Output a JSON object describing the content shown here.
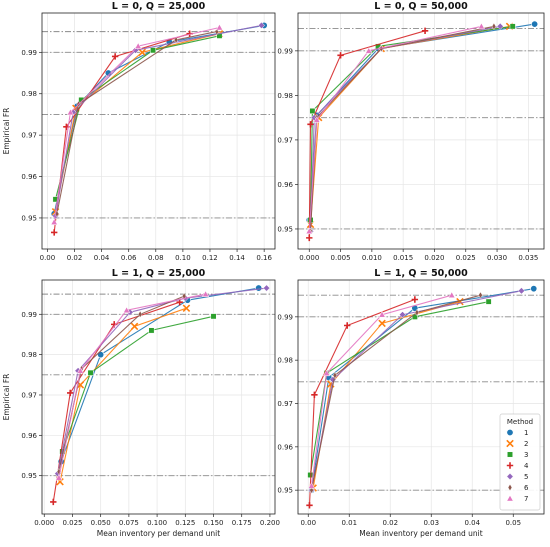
{
  "colors": {
    "1": "#1f77b4",
    "2": "#ff7f0e",
    "3": "#2ca02c",
    "4": "#d62728",
    "5": "#9467bd",
    "6": "#8c564b",
    "7": "#e377c2",
    "grid": "#e5e5e5",
    "hline": "#8a8a8a"
  },
  "markers": {
    "1": "circle",
    "2": "x",
    "3": "square",
    "4": "plus",
    "5": "diamond",
    "6": "thin-diamond",
    "7": "triangle"
  },
  "legend": {
    "title": "Method",
    "entries": [
      "1",
      "2",
      "3",
      "4",
      "5",
      "6",
      "7"
    ],
    "placement": "lower-right of bottom-right panel"
  },
  "chart_data": [
    {
      "type": "line",
      "title": "L = 0, Q = 25,000",
      "xlabel": "",
      "ylabel": "Empirical FR",
      "xlim": [
        -0.004,
        0.168
      ],
      "ylim": [
        0.9425,
        0.9995
      ],
      "xticks": [
        "0.00",
        "0.02",
        "0.04",
        "0.06",
        "0.08",
        "0.10",
        "0.12",
        "0.14",
        "0.16"
      ],
      "xtick_values": [
        0,
        0.02,
        0.04,
        0.06,
        0.08,
        0.1,
        0.12,
        0.14,
        0.16
      ],
      "yticks": [
        "0.95",
        "0.96",
        "0.97",
        "0.98",
        "0.99"
      ],
      "ytick_values": [
        0.95,
        0.96,
        0.97,
        0.98,
        0.99
      ],
      "hlines": [
        0.95,
        0.975,
        0.99,
        0.995
      ],
      "grid": true,
      "series": [
        {
          "name": "1",
          "x": [
            0.005,
            0.022,
            0.045,
            0.09,
            0.16
          ],
          "y": [
            0.951,
            0.977,
            0.985,
            0.9925,
            0.9965
          ]
        },
        {
          "name": "2",
          "x": [
            0.006,
            0.021,
            0.07,
            0.127
          ],
          "y": [
            0.9515,
            0.9765,
            0.99,
            0.9945
          ]
        },
        {
          "name": "3",
          "x": [
            0.006,
            0.025,
            0.078,
            0.127
          ],
          "y": [
            0.9545,
            0.9785,
            0.9905,
            0.994
          ]
        },
        {
          "name": "4",
          "x": [
            0.005,
            0.014,
            0.05,
            0.105
          ],
          "y": [
            0.9465,
            0.972,
            0.989,
            0.9945
          ]
        },
        {
          "name": "5",
          "x": [
            0.006,
            0.019,
            0.065,
            0.158
          ],
          "y": [
            0.9505,
            0.9755,
            0.9905,
            0.9965
          ]
        },
        {
          "name": "6",
          "x": [
            0.007,
            0.023,
            0.095,
            0.125
          ],
          "y": [
            0.951,
            0.9775,
            0.993,
            0.995
          ]
        },
        {
          "name": "7",
          "x": [
            0.005,
            0.017,
            0.067,
            0.127
          ],
          "y": [
            0.949,
            0.9755,
            0.9915,
            0.996
          ]
        }
      ]
    },
    {
      "type": "line",
      "title": "L = 0, Q = 50,000",
      "xlabel": "",
      "ylabel": "",
      "xlim": [
        -0.0018,
        0.0375
      ],
      "ylim": [
        0.9455,
        0.9985
      ],
      "xticks": [
        "0.000",
        "0.005",
        "0.010",
        "0.015",
        "0.020",
        "0.025",
        "0.030",
        "0.035"
      ],
      "xtick_values": [
        0,
        0.005,
        0.01,
        0.015,
        0.02,
        0.025,
        0.03,
        0.035
      ],
      "yticks": [
        "0.95",
        "0.96",
        "0.97",
        "0.98",
        "0.99"
      ],
      "ytick_values": [
        0.95,
        0.96,
        0.97,
        0.98,
        0.99
      ],
      "hlines": [
        0.95,
        0.975,
        0.99,
        0.995
      ],
      "grid": true,
      "series": [
        {
          "name": "1",
          "x": [
            0.0,
            0.0012,
            0.011,
            0.036
          ],
          "y": [
            0.952,
            0.9755,
            0.9905,
            0.996
          ]
        },
        {
          "name": "2",
          "x": [
            0.0002,
            0.0015,
            0.0115,
            0.032
          ],
          "y": [
            0.951,
            0.975,
            0.9905,
            0.9955
          ]
        },
        {
          "name": "3",
          "x": [
            0.0002,
            0.0005,
            0.011,
            0.0325
          ],
          "y": [
            0.952,
            0.9765,
            0.991,
            0.9955
          ]
        },
        {
          "name": "4",
          "x": [
            0.0,
            0.0002,
            0.005,
            0.0185
          ],
          "y": [
            0.948,
            0.9735,
            0.989,
            0.9945
          ]
        },
        {
          "name": "5",
          "x": [
            0.0002,
            0.0008,
            0.0115,
            0.0305
          ],
          "y": [
            0.9495,
            0.975,
            0.9905,
            0.9955
          ]
        },
        {
          "name": "6",
          "x": [
            0.0002,
            0.0012,
            0.0115,
            0.0295
          ],
          "y": [
            0.9495,
            0.975,
            0.9905,
            0.9955
          ]
        },
        {
          "name": "7",
          "x": [
            0.0,
            0.0012,
            0.0095,
            0.0275
          ],
          "y": [
            0.9495,
            0.9745,
            0.99,
            0.9955
          ]
        }
      ]
    },
    {
      "type": "line",
      "title": "L = 1, Q = 25,000",
      "xlabel": "Mean inventory per demand unit",
      "ylabel": "Empirical FR",
      "xlim": [
        -0.002,
        0.2045
      ],
      "ylim": [
        0.9405,
        0.9985
      ],
      "xticks": [
        "0.000",
        "0.025",
        "0.050",
        "0.075",
        "0.100",
        "0.125",
        "0.150",
        "0.175",
        "0.200"
      ],
      "xtick_values": [
        0,
        0.025,
        0.05,
        0.075,
        0.1,
        0.125,
        0.15,
        0.175,
        0.2
      ],
      "yticks": [
        "0.95",
        "0.96",
        "0.97",
        "0.98",
        "0.99"
      ],
      "ytick_values": [
        0.95,
        0.96,
        0.97,
        0.98,
        0.99
      ],
      "hlines": [
        0.95,
        0.975,
        0.99,
        0.995
      ],
      "grid": true,
      "series": [
        {
          "name": "1",
          "x": [
            0.015,
            0.05,
            0.127,
            0.19
          ],
          "y": [
            0.9535,
            0.98,
            0.9935,
            0.9965
          ]
        },
        {
          "name": "2",
          "x": [
            0.014,
            0.032,
            0.08,
            0.126
          ],
          "y": [
            0.9485,
            0.9725,
            0.987,
            0.9915
          ]
        },
        {
          "name": "3",
          "x": [
            0.016,
            0.041,
            0.095,
            0.15
          ],
          "y": [
            0.956,
            0.9755,
            0.986,
            0.9895
          ]
        },
        {
          "name": "4",
          "x": [
            0.008,
            0.023,
            0.062,
            0.12
          ],
          "y": [
            0.9435,
            0.9705,
            0.9875,
            0.993
          ]
        },
        {
          "name": "5",
          "x": [
            0.012,
            0.03,
            0.076,
            0.125,
            0.197
          ],
          "y": [
            0.9505,
            0.976,
            0.9905,
            0.994,
            0.9965
          ]
        },
        {
          "name": "6",
          "x": [
            0.013,
            0.033,
            0.085,
            0.124
          ],
          "y": [
            0.951,
            0.9765,
            0.99,
            0.9945
          ]
        },
        {
          "name": "7",
          "x": [
            0.013,
            0.032,
            0.073,
            0.143
          ],
          "y": [
            0.9495,
            0.976,
            0.991,
            0.995
          ]
        }
      ]
    },
    {
      "type": "line",
      "title": "L = 1, Q = 50,000",
      "xlabel": "Mean inventory per demand unit",
      "ylabel": "",
      "xlim": [
        -0.0025,
        0.0575
      ],
      "ylim": [
        0.9445,
        0.9985
      ],
      "xticks": [
        "0.00",
        "0.01",
        "0.02",
        "0.03",
        "0.04",
        "0.05"
      ],
      "xtick_values": [
        0,
        0.01,
        0.02,
        0.03,
        0.04,
        0.05
      ],
      "yticks": [
        "0.95",
        "0.96",
        "0.97",
        "0.98",
        "0.99"
      ],
      "ytick_values": [
        0.95,
        0.96,
        0.97,
        0.98,
        0.99
      ],
      "hlines": [
        0.95,
        0.975,
        0.99,
        0.995
      ],
      "grid": true,
      "series": [
        {
          "name": "1",
          "x": [
            0.0008,
            0.005,
            0.026,
            0.055
          ],
          "y": [
            0.95,
            0.976,
            0.992,
            0.9965
          ]
        },
        {
          "name": "2",
          "x": [
            0.0012,
            0.0055,
            0.018,
            0.037
          ],
          "y": [
            0.9505,
            0.9745,
            0.9885,
            0.9935
          ]
        },
        {
          "name": "3",
          "x": [
            0.0005,
            0.0045,
            0.026,
            0.044
          ],
          "y": [
            0.9535,
            0.977,
            0.99,
            0.9935
          ]
        },
        {
          "name": "4",
          "x": [
            0.0003,
            0.0015,
            0.0095,
            0.026
          ],
          "y": [
            0.9465,
            0.972,
            0.988,
            0.994
          ]
        },
        {
          "name": "5",
          "x": [
            0.0008,
            0.006,
            0.023,
            0.052
          ],
          "y": [
            0.95,
            0.9755,
            0.9905,
            0.996
          ]
        },
        {
          "name": "6",
          "x": [
            0.0008,
            0.0065,
            0.0265,
            0.042
          ],
          "y": [
            0.95,
            0.9765,
            0.991,
            0.995
          ]
        },
        {
          "name": "7",
          "x": [
            0.0008,
            0.0045,
            0.018,
            0.035
          ],
          "y": [
            0.951,
            0.977,
            0.9905,
            0.995
          ]
        }
      ]
    }
  ]
}
